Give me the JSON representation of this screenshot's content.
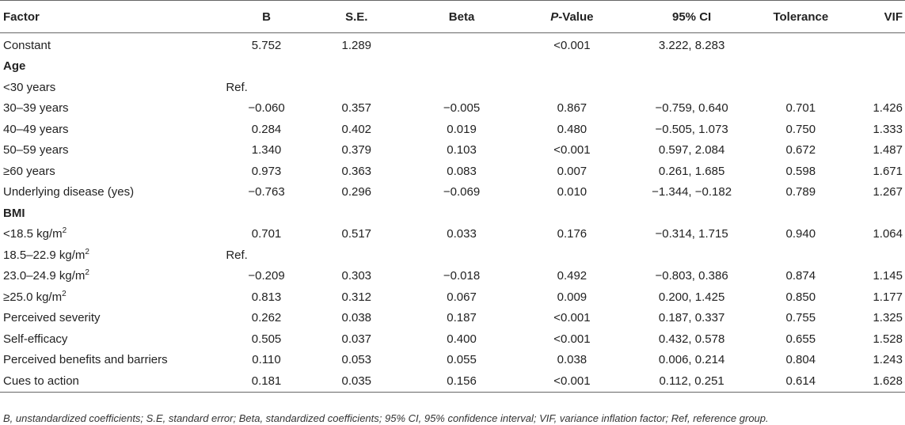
{
  "headers": {
    "factor": "Factor",
    "b": "B",
    "se": "S.E.",
    "beta": "Beta",
    "p_italic": "P",
    "p_rest": "-Value",
    "ci": "95% CI",
    "tolerance": "Tolerance",
    "vif": "VIF"
  },
  "rows": {
    "constant": {
      "factor": "Constant",
      "b": "5.752",
      "se": "1.289",
      "beta": "",
      "p": "<0.001",
      "ci": "3.222, 8.283",
      "tol": "",
      "vif": ""
    },
    "age_header": {
      "factor": "Age"
    },
    "age_lt30": {
      "factor": "<30 years",
      "b": "Ref."
    },
    "age_30_39": {
      "factor": "30–39 years",
      "b": "−0.060",
      "se": "0.357",
      "beta": "−0.005",
      "p": "0.867",
      "ci": "−0.759, 0.640",
      "tol": "0.701",
      "vif": "1.426"
    },
    "age_40_49": {
      "factor": "40–49 years",
      "b": "0.284",
      "se": "0.402",
      "beta": "0.019",
      "p": "0.480",
      "ci": "−0.505, 1.073",
      "tol": "0.750",
      "vif": "1.333"
    },
    "age_50_59": {
      "factor": "50–59 years",
      "b": "1.340",
      "se": "0.379",
      "beta": "0.103",
      "p": "<0.001",
      "ci": "0.597, 2.084",
      "tol": "0.672",
      "vif": "1.487"
    },
    "age_ge60": {
      "factor": "≥60 years",
      "b": "0.973",
      "se": "0.363",
      "beta": "0.083",
      "p": "0.007",
      "ci": "0.261, 1.685",
      "tol": "0.598",
      "vif": "1.671"
    },
    "underlying": {
      "factor": "Underlying disease (yes)",
      "b": "−0.763",
      "se": "0.296",
      "beta": "−0.069",
      "p": "0.010",
      "ci": "−1.344, −0.182",
      "tol": "0.789",
      "vif": "1.267"
    },
    "bmi_header": {
      "factor": "BMI"
    },
    "bmi_lt185": {
      "factor_pre": "<18.5 kg/m",
      "sup": "2",
      "b": "0.701",
      "se": "0.517",
      "beta": "0.033",
      "p": "0.176",
      "ci": "−0.314, 1.715",
      "tol": "0.940",
      "vif": "1.064"
    },
    "bmi_185_229": {
      "factor_pre": "18.5–22.9 kg/m",
      "sup": "2",
      "b": "Ref."
    },
    "bmi_230_249": {
      "factor_pre": "23.0–24.9 kg/m",
      "sup": "2",
      "b": "−0.209",
      "se": "0.303",
      "beta": "−0.018",
      "p": "0.492",
      "ci": "−0.803, 0.386",
      "tol": "0.874",
      "vif": "1.145"
    },
    "bmi_ge25": {
      "factor_pre": "≥25.0 kg/m",
      "sup": "2",
      "b": "0.813",
      "se": "0.312",
      "beta": "0.067",
      "p": "0.009",
      "ci": "0.200, 1.425",
      "tol": "0.850",
      "vif": "1.177"
    },
    "severity": {
      "factor": "Perceived severity",
      "b": "0.262",
      "se": "0.038",
      "beta": "0.187",
      "p": "<0.001",
      "ci": "0.187, 0.337",
      "tol": "0.755",
      "vif": "1.325"
    },
    "selfeff": {
      "factor": "Self-efficacy",
      "b": "0.505",
      "se": "0.037",
      "beta": "0.400",
      "p": "<0.001",
      "ci": "0.432, 0.578",
      "tol": "0.655",
      "vif": "1.528"
    },
    "benefits": {
      "factor": "Perceived benefits and barriers",
      "b": "0.110",
      "se": "0.053",
      "beta": "0.055",
      "p": "0.038",
      "ci": "0.006, 0.214",
      "tol": "0.804",
      "vif": "1.243"
    },
    "cues": {
      "factor": "Cues to action",
      "b": "0.181",
      "se": "0.035",
      "beta": "0.156",
      "p": "<0.001",
      "ci": "0.112, 0.251",
      "tol": "0.614",
      "vif": "1.628"
    }
  },
  "footnote": "B, unstandardized coefficients; S.E, standard error; Beta, standardized coefficients; 95% CI, 95% confidence interval; VIF, variance inflation factor; Ref, reference group."
}
